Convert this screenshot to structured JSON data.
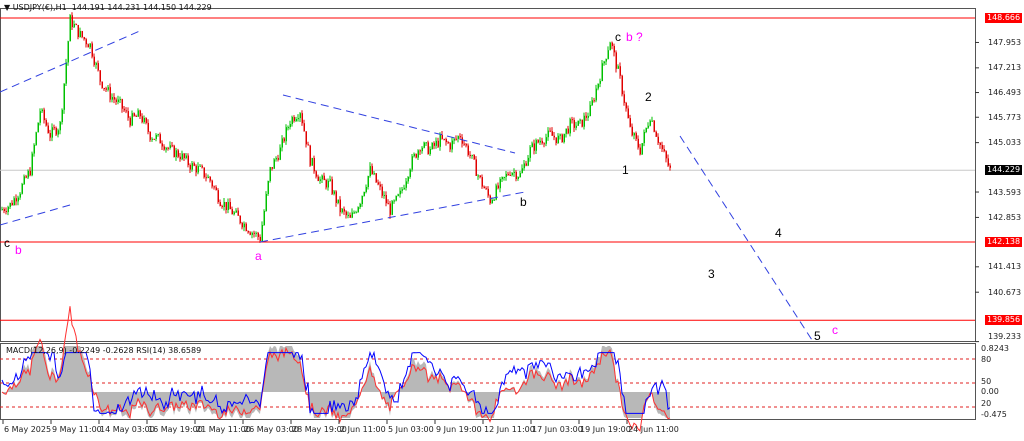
{
  "header": {
    "symbol": "USDJPY(€),H1",
    "values": "144.191 144.231 144.150 144.229"
  },
  "indicator_header": "MACD(12,26,9) -0.2249 -0.2628  RSI(14) 38.6589",
  "chart_data": {
    "type": "candlestick",
    "symbol": "USDJPY",
    "timeframe": "H1",
    "ylim": [
      139.233,
      148.9
    ],
    "price_ticks": [
      "147.953",
      "147.213",
      "146.493",
      "145.773",
      "145.033",
      "143.593",
      "142.853",
      "141.413",
      "140.673",
      "139.233"
    ],
    "time_ticks": [
      "6 May 2025",
      "9 May 11:00",
      "14 May 03:00",
      "16 May 19:00",
      "21 May 11:00",
      "26 May 03:00",
      "28 May 19:00",
      "2 Jun 11:00",
      "5 Jun 03:00",
      "9 Jun 19:00",
      "12 Jun 11:00",
      "17 Jun 03:00",
      "19 Jun 19:00",
      "24 Jun 11:00"
    ],
    "close_path": [
      143.07,
      143.22,
      143.65,
      144.23,
      145.98,
      145.26,
      145.55,
      148.61,
      148.17,
      147.88,
      146.86,
      146.42,
      146.13,
      145.69,
      145.84,
      145.26,
      145.11,
      144.82,
      144.67,
      144.38,
      144.23,
      143.94,
      143.36,
      143.07,
      142.78,
      142.48,
      142.25,
      144.23,
      144.82,
      145.69,
      145.98,
      144.53,
      143.94,
      143.8,
      143.07,
      142.78,
      143.36,
      144.23,
      143.65,
      143.07,
      143.51,
      144.38,
      144.96,
      144.82,
      145.11,
      144.96,
      145.26,
      144.67,
      143.94,
      143.36,
      143.8,
      144.23,
      144.09,
      144.82,
      145.11,
      145.26,
      145.11,
      145.55,
      145.55,
      145.98,
      147.0,
      148.02,
      146.86,
      145.4,
      144.82,
      145.84,
      144.96,
      144.23
    ],
    "horizontal_levels": [
      {
        "price": "148.666",
        "color": "#ff0000"
      },
      {
        "price": "142.138",
        "color": "#ff0000"
      },
      {
        "price": "139.856",
        "color": "#ff0000"
      }
    ],
    "current_price": "144.229",
    "wave_labels": [
      {
        "text": "c",
        "color": "#000000"
      },
      {
        "text": "b",
        "color": "#ff00ff"
      },
      {
        "text": "a",
        "color": "#ff00ff"
      },
      {
        "text": "b",
        "color": "#000000"
      },
      {
        "text": "c",
        "color": "#000000"
      },
      {
        "text": "b ?",
        "color": "#ff00ff"
      },
      {
        "text": "2",
        "color": "#000000"
      },
      {
        "text": "1",
        "color": "#000000"
      },
      {
        "text": "4",
        "color": "#000000"
      },
      {
        "text": "3",
        "color": "#000000"
      },
      {
        "text": "5",
        "color": "#000000"
      },
      {
        "text": "c",
        "color": "#ff00ff"
      }
    ],
    "indicator": {
      "rsi_levels": [
        "80",
        "50",
        "20"
      ],
      "macd_scale": [
        "0.8243",
        "0.00",
        "-0.475"
      ]
    },
    "colors": {
      "bull": "#00c000",
      "bear": "#e00000",
      "trendline": "#3040e0",
      "rsi": "#0000ff",
      "signal": "#ff3030",
      "hist": "#b8b8b8"
    }
  }
}
